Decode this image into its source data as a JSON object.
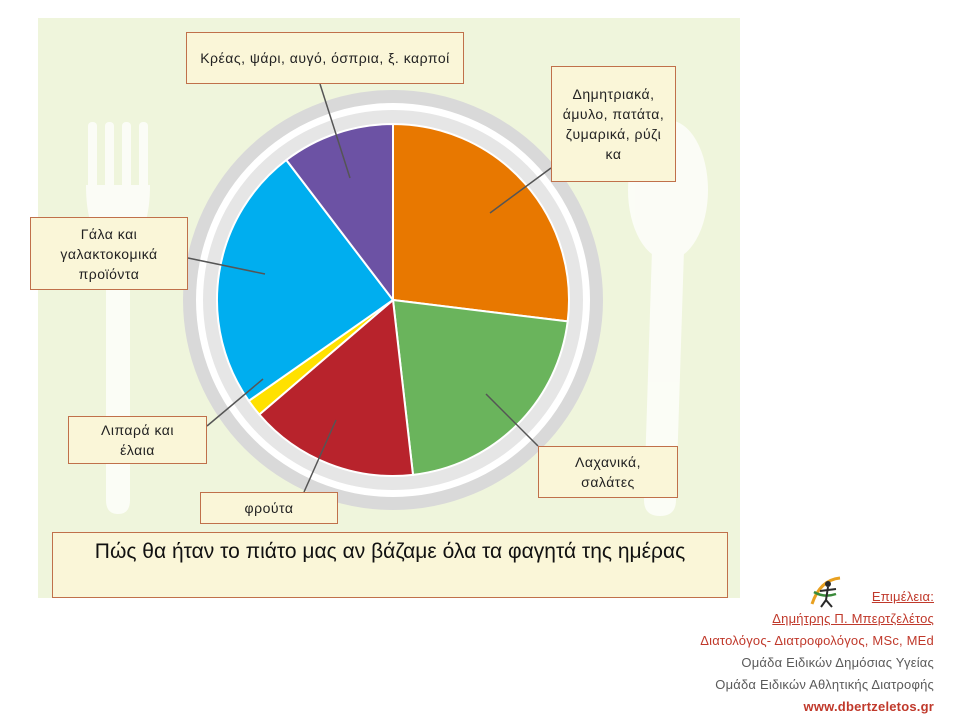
{
  "title": "Πώς θα ήταν το πιάτο μας αν βάζαμε όλα τα φαγητά της ημέρας",
  "chart_data": {
    "type": "pie",
    "title": "Πώς θα ήταν το πιάτο μας αν βάζαμε όλα τα φαγητά της ημέρας",
    "slices": [
      {
        "label": "Δημητριακά, άμυλο, πατάτα, ζυμαρικά, ρύζι κα",
        "value": 26.0,
        "color": "#e87800"
      },
      {
        "label": "Λαχανικά, σαλάτες",
        "value": 20.5,
        "color": "#6ab45c"
      },
      {
        "label": "φρούτα",
        "value": 15.0,
        "color": "#b8232c"
      },
      {
        "label": "Λιπαρά και έλαια",
        "value": 1.5,
        "color": "#ffe100"
      },
      {
        "label": "Γάλα και γαλακτοκομικά προϊόντα",
        "value": 23.5,
        "color": "#00aeef"
      },
      {
        "label": "Κρέας, ψάρι, αυγό, όσπρια, ξ. καρποί",
        "value": 10.0,
        "color": "#6c52a4"
      }
    ]
  },
  "labels": {
    "meat": "Κρέας, ψάρι, αυγό, όσπρια, ξ. καρποί",
    "grains": "Δημητριακά, άμυλο, πατάτα, ζυμαρικά, ρύζι κα",
    "dairy": "Γάλα και γαλακτοκομικά προϊόντα",
    "veg": "Λαχανικά, σαλάτες",
    "fats": "Λιπαρά και έλαια",
    "fruit": "φρούτα"
  },
  "credits": {
    "heading": "Επιμέλεια:",
    "name": "Δημήτρης Π. Μπερτζελέτος",
    "role": "Διατολόγος- Διατροφολόγος, MSc, MEd",
    "org1": "Ομάδα Ειδικών Δημόσιας Υγείας",
    "org2": "Ομάδα Ειδικών Αθλητικής Διατροφής",
    "website": "www.dbertzeletos.gr"
  },
  "colors": {
    "panel": "#eff5dc",
    "label_fill": "#faf6d8",
    "label_border": "#c0704a",
    "plate_rim": "#d9d9d9"
  }
}
